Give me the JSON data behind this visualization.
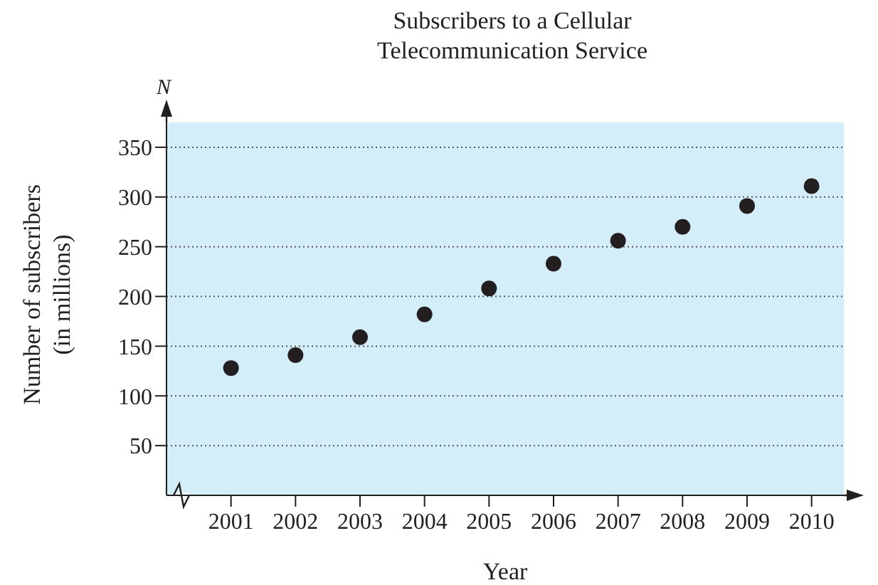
{
  "chart_data": {
    "type": "scatter",
    "title": "Subscribers to a Cellular\nTelecommunication Service",
    "xlabel": "Year",
    "ylabel": "Number of subscribers\n(in millions)",
    "annotations": [
      "N"
    ],
    "x": [
      2001,
      2002,
      2003,
      2004,
      2005,
      2006,
      2007,
      2008,
      2009,
      2010
    ],
    "series": [
      {
        "color": "#231f20",
        "values": [
          128,
          141,
          159,
          182,
          208,
          233,
          256,
          270,
          291,
          311
        ]
      }
    ],
    "xlim": [
      2000,
      2010.5
    ],
    "xticks": [
      2001,
      2002,
      2003,
      2004,
      2005,
      2006,
      2007,
      2008,
      2009,
      2010
    ],
    "ylim": [
      0,
      375
    ],
    "yticks": [
      50,
      100,
      150,
      200,
      250,
      300,
      350
    ],
    "grid": "y",
    "marker": "circle",
    "legend": false
  }
}
